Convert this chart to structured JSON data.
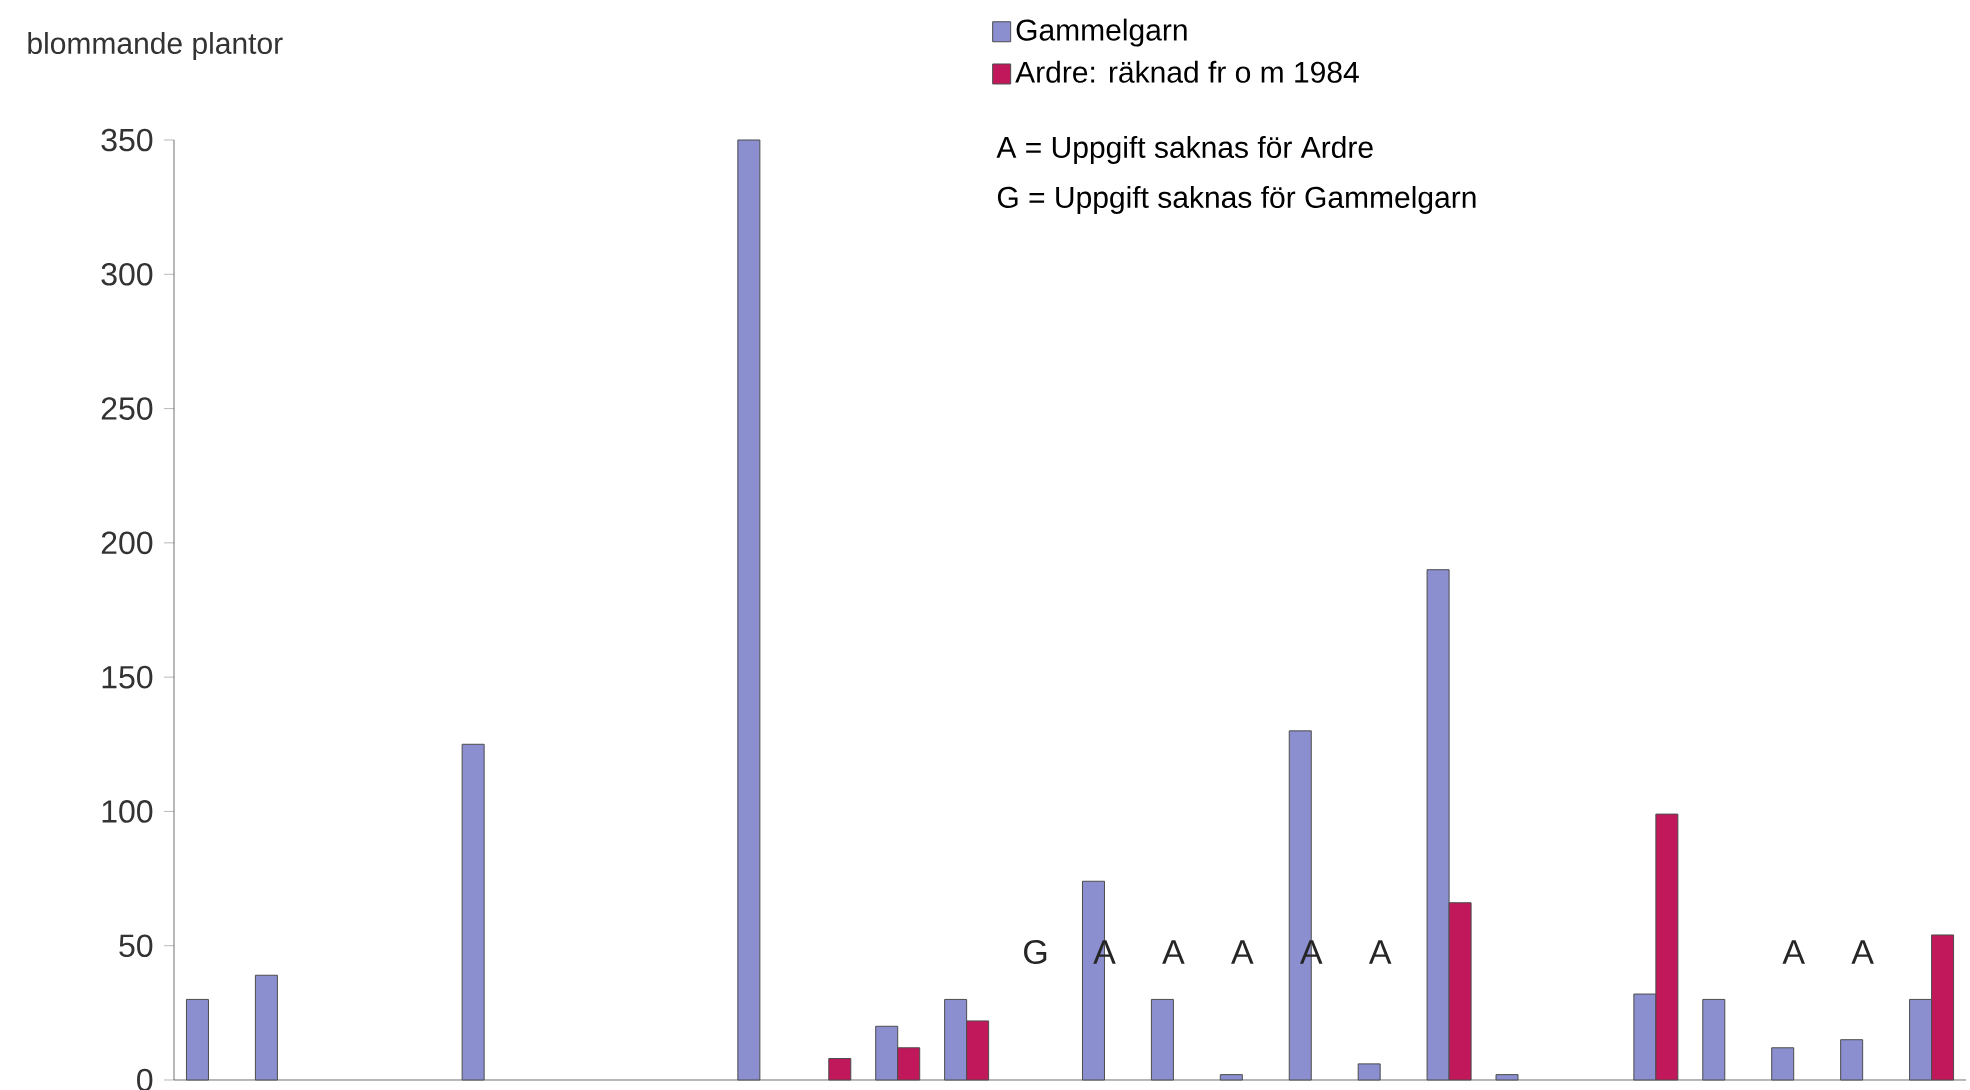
{
  "chart_data": {
    "type": "bar",
    "ylabel": "blommande plantor",
    "categories": [
      null,
      null,
      null,
      null,
      null,
      null,
      null,
      null,
      null,
      null,
      null,
      null,
      null,
      null,
      null,
      null,
      null,
      null,
      null,
      null,
      null,
      null,
      null,
      null,
      null,
      null
    ],
    "series": [
      {
        "name": "Gammelgarn",
        "color": "#8b8fd0",
        "values": [
          30,
          39,
          0,
          0,
          125,
          0,
          0,
          0,
          350,
          0,
          20,
          30,
          null,
          74,
          30,
          2,
          130,
          6,
          190,
          2,
          0,
          32,
          30,
          12,
          15,
          30
        ]
      },
      {
        "name": "Ardre: räknad fr o m 1984",
        "color": "#c0185a",
        "values": [
          null,
          null,
          null,
          null,
          null,
          null,
          null,
          null,
          null,
          8,
          12,
          22,
          null,
          null,
          null,
          null,
          null,
          null,
          66,
          0,
          0,
          99,
          0,
          null,
          null,
          54
        ]
      }
    ],
    "annotations": [
      "G",
      "A",
      "A",
      "A",
      "A",
      "A",
      "A",
      "A",
      "A = Uppgift saknas för Ardre",
      "G = Uppgift saknas för Gammelgarn"
    ],
    "ylim": [
      0,
      350
    ],
    "yticks": [
      0,
      50,
      100,
      150,
      200,
      250,
      300,
      350
    ],
    "legend": "top right",
    "tick_labels": "y",
    "grid": false
  }
}
